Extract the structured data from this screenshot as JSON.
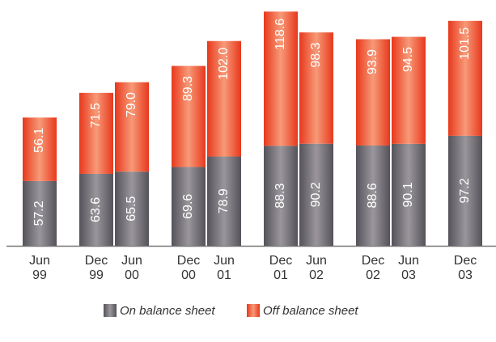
{
  "chart_data": {
    "type": "stacked_bar",
    "categories": [
      "Jun\n99",
      "Dec\n99",
      "Jun\n00",
      "Dec\n00",
      "Jun\n01",
      "Dec\n01",
      "Jun\n02",
      "Dec\n02",
      "Jun\n03",
      "Dec\n03"
    ],
    "series": [
      {
        "name": "On balance sheet",
        "color": "#6f6b71",
        "values": [
          57.2,
          63.6,
          65.5,
          69.6,
          78.9,
          88.3,
          90.2,
          88.6,
          90.1,
          97.2
        ],
        "value_labels": [
          "57.2",
          "63.6",
          "65.5",
          "69.6",
          "78.9",
          "88.3",
          "90.2",
          "88.6",
          "90.1",
          "97.2"
        ]
      },
      {
        "name": "Off balance sheet",
        "color": "#ee4524",
        "values": [
          56.1,
          71.5,
          79.0,
          89.3,
          102.0,
          118.6,
          98.3,
          93.9,
          94.5,
          101.5
        ],
        "value_labels": [
          "56.1",
          "71.5",
          "79.0",
          "89.3",
          "102.0",
          "118.6",
          "98.3",
          "93.9",
          "94.5",
          "101.5"
        ]
      }
    ],
    "ylim": [
      0,
      210
    ]
  }
}
